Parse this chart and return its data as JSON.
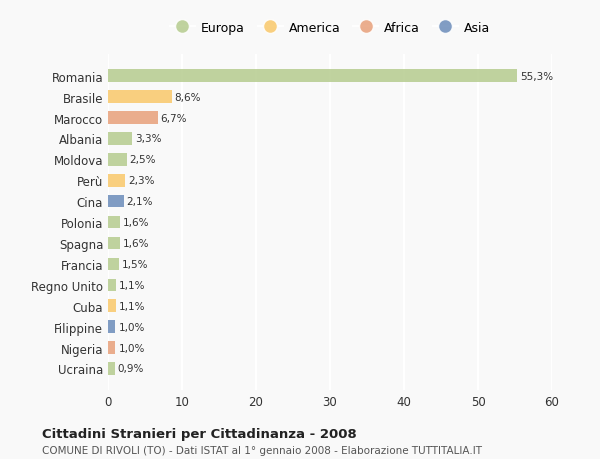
{
  "categories": [
    "Romania",
    "Brasile",
    "Marocco",
    "Albania",
    "Moldova",
    "Perù",
    "Cina",
    "Polonia",
    "Spagna",
    "Francia",
    "Regno Unito",
    "Cuba",
    "Filippine",
    "Nigeria",
    "Ucraina"
  ],
  "values": [
    55.3,
    8.6,
    6.7,
    3.3,
    2.5,
    2.3,
    2.1,
    1.6,
    1.6,
    1.5,
    1.1,
    1.1,
    1.0,
    1.0,
    0.9
  ],
  "labels": [
    "55,3%",
    "8,6%",
    "6,7%",
    "3,3%",
    "2,5%",
    "2,3%",
    "2,1%",
    "1,6%",
    "1,6%",
    "1,5%",
    "1,1%",
    "1,1%",
    "1,0%",
    "1,0%",
    "0,9%"
  ],
  "colors": [
    "#b5cc8e",
    "#f9c86a",
    "#e8a07a",
    "#b5cc8e",
    "#b5cc8e",
    "#f9c86a",
    "#6b8cba",
    "#b5cc8e",
    "#b5cc8e",
    "#b5cc8e",
    "#b5cc8e",
    "#f9c86a",
    "#6b8cba",
    "#e8a07a",
    "#b5cc8e"
  ],
  "legend_labels": [
    "Europa",
    "America",
    "Africa",
    "Asia"
  ],
  "legend_colors": [
    "#b5cc8e",
    "#f9c86a",
    "#e8a07a",
    "#6b8cba"
  ],
  "xlim": [
    0,
    60
  ],
  "xticks": [
    0,
    10,
    20,
    30,
    40,
    50,
    60
  ],
  "title": "Cittadini Stranieri per Cittadinanza - 2008",
  "subtitle": "COMUNE DI RIVOLI (TO) - Dati ISTAT al 1° gennaio 2008 - Elaborazione TUTTITALIA.IT",
  "background_color": "#f9f9f9",
  "grid_color": "#ffffff",
  "bar_height": 0.6
}
